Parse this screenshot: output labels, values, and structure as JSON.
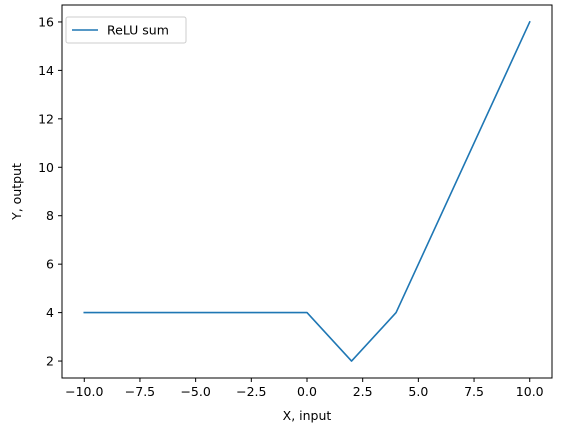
{
  "chart_data": {
    "type": "line",
    "title": "",
    "xlabel": "X, input",
    "ylabel": "Y, output",
    "xlim": [
      -11,
      11
    ],
    "ylim": [
      1.3,
      16.7
    ],
    "grid": false,
    "legend_position": "top-left",
    "x_ticks": [
      -10.0,
      -7.5,
      -5.0,
      -2.5,
      0.0,
      2.5,
      5.0,
      7.5,
      10.0
    ],
    "x_tick_labels": [
      "−10.0",
      "−7.5",
      "−5.0",
      "−2.5",
      "0.0",
      "2.5",
      "5.0",
      "7.5",
      "10.0"
    ],
    "y_ticks": [
      2,
      4,
      6,
      8,
      10,
      12,
      14,
      16
    ],
    "y_tick_labels": [
      "2",
      "4",
      "6",
      "8",
      "10",
      "12",
      "14",
      "16"
    ],
    "series": [
      {
        "name": "ReLU sum",
        "color": "#1f77b4",
        "x": [
          -10,
          0,
          2,
          4,
          10
        ],
        "y": [
          4,
          4,
          2,
          4,
          16
        ]
      }
    ]
  }
}
